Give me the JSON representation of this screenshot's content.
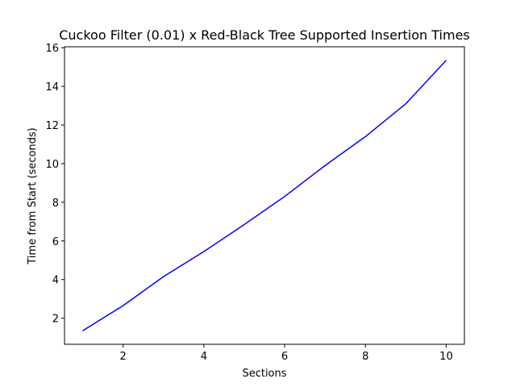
{
  "chart_data": {
    "type": "line",
    "title": "Cuckoo Filter (0.01) x Red-Black Tree Supported Insertion Times",
    "xlabel": "Sections",
    "ylabel": "Time from Start (seconds)",
    "xlim": [
      0.55,
      10.45
    ],
    "ylim": [
      0.65,
      16.05
    ],
    "xticks": [
      2,
      4,
      6,
      8,
      10
    ],
    "yticks": [
      2,
      4,
      6,
      8,
      10,
      12,
      14,
      16
    ],
    "grid": false,
    "series": [
      {
        "color": "#0000ff",
        "x": [
          1,
          2,
          3,
          4,
          5,
          6,
          7,
          8,
          9,
          10
        ],
        "y": [
          1.35,
          2.65,
          4.15,
          5.45,
          6.85,
          8.3,
          9.9,
          11.4,
          13.1,
          15.35
        ]
      }
    ]
  }
}
